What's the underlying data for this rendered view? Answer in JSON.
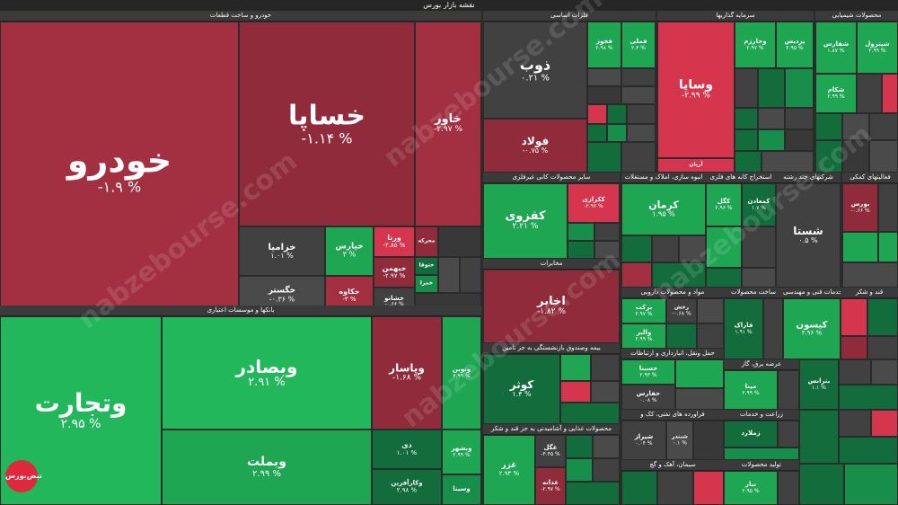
{
  "title": "نقشه بازار بورس",
  "watermark": "nabzebourse.com",
  "logo_text": "نبض‌بورس",
  "sections": {
    "auto": "خودرو و ساخت قطعات",
    "bank": "بانکها و موسسات اعتباری",
    "metal": "فلزات اساسی",
    "invest": "سرمایه گذاریها",
    "chem": "محصولات شیمیایی",
    "mineral": "سایر محصولات کانی غیرفلزی",
    "massbuild": "انبوه سازی، املاک و مستغلات",
    "coal": "استخراج کانه های فلزی",
    "multi": "شرکتهای چند رشته",
    "aux": "فعالیتهای کمکی",
    "telecom": "مخابرات",
    "insurance": "بیمه وصندوق بازنشستگی به جز تامین",
    "materials": "مواد و محصولات دارویی",
    "techserv": "خدمات فنی و مهندسی",
    "sugar": "قند و شکر",
    "building": "ساخت محصولات",
    "transport": "حمل ونقل، انبارداری و ارتباطات",
    "supply": "عرضه برق، گاز",
    "oil": "فراورده های نفتی، کک و",
    "food": "محصولات غذایی و آشامیدنی به جز قند و شکر",
    "agri": "زراعت و خدمات",
    "cement": "سیمان، آهک و گچ",
    "prod": "تولید محصولات"
  },
  "tiles": {
    "khodro": {
      "n": "خودرو",
      "v": "-۱.۹ %"
    },
    "khsapa": {
      "n": "خساپا",
      "v": "-۱.۱۴ %"
    },
    "khavar": {
      "n": "خاور",
      "v": "-۲.۹۷ %"
    },
    "khzamia": {
      "n": "خزامیا",
      "v": "۱.۰۱ %"
    },
    "khpars": {
      "n": "خپارس",
      "v": "۳ %"
    },
    "vorna": {
      "n": "ورنا",
      "v": "-۲.۸۵ %"
    },
    "mhrke": {
      "n": "محرکه",
      "v": ""
    },
    "khegostar": {
      "n": "خگستر",
      "v": "-۰.۳۶ %"
    },
    "khkaveh": {
      "n": "خکاوه",
      "v": "-۳ %"
    },
    "khbahman": {
      "n": "خبهمن",
      "v": "-۲.۹۷ %"
    },
    "kheshanu": {
      "n": "خشانو",
      "v": "-۰.۶۶ %"
    },
    "khtok": {
      "n": "ختوقا",
      "v": ""
    },
    "khamra": {
      "n": "خمرا",
      "v": ""
    },
    "vtejarat": {
      "n": "وتجارت",
      "v": "۲.۹۵ %"
    },
    "vbsader": {
      "n": "وبصادر",
      "v": "۲.۹۱ %"
    },
    "vbmelat": {
      "n": "وبملت",
      "v": "۲.۹۹ %"
    },
    "vpasar": {
      "n": "وپاسار",
      "v": "-۱.۶۸ %"
    },
    "vnovin": {
      "n": "ونوین",
      "v": "۲.۹۹ %"
    },
    "di": {
      "n": "دی",
      "v": "۱.۰۱ %"
    },
    "vbshahr": {
      "n": "وبشهر",
      "v": "۲.۹۹ %"
    },
    "vkarafarin": {
      "n": "وکارآفرین",
      "v": "۲.۹۸ %"
    },
    "vsina": {
      "n": "وسینا",
      "v": ""
    },
    "zob": {
      "n": "ذوب",
      "v": "۰.۲۱ %"
    },
    "foolad": {
      "n": "فولاد",
      "v": "-۰.۷۵ %"
    },
    "khoz": {
      "n": "فخوز",
      "v": "۲.۹۸ %"
    },
    "fameli": {
      "n": "فملی",
      "v": "۲.۳ %"
    },
    "vsapa": {
      "n": "وساپا",
      "v": "-۲.۹۹ %"
    },
    "vkharazm": {
      "n": "وخارزم",
      "v": "۲.۹۷ %"
    },
    "pardis": {
      "n": "پردیس",
      "v": "۲.۹۵ %"
    },
    "aryan": {
      "n": "آریان",
      "v": "-۲.۹۷ %"
    },
    "shfars": {
      "n": "شفارس",
      "v": "۱.۸۷ %"
    },
    "shepetrol": {
      "n": "شپترول",
      "v": "۲.۹۹ %"
    },
    "shkam": {
      "n": "شکام",
      "v": "۲.۹۹ %"
    },
    "kghazvin": {
      "n": "کقزوی",
      "v": "۲.۲۱ %"
    },
    "kkerazi": {
      "n": "ککرازی",
      "v": "-۲.۹۷ %"
    },
    "kerman": {
      "n": "کرمان",
      "v": "۱.۹۵ %"
    },
    "kegol": {
      "n": "کگل",
      "v": "۲.۹۶ %"
    },
    "kemadan": {
      "n": "کمعادن",
      "v": "۱.۷ %"
    },
    "shasta": {
      "n": "شستا",
      "v": "۰.۵ %"
    },
    "boors": {
      "n": "بورس",
      "v": "-۰.۶۶ %"
    },
    "akhaber": {
      "n": "اخابر",
      "v": "-۱.۸۲ %"
    },
    "kowsar": {
      "n": "کوثر",
      "v": "۱.۴ %"
    },
    "keysun": {
      "n": "کیسون",
      "v": "۲.۹۶ %"
    },
    "gol": {
      "n": "غگل",
      "v": "-۴.۴۵ %"
    },
    "ghazar": {
      "n": "غزر",
      "v": "۲.۹۳ %"
    },
    "ghadaneh": {
      "n": "غدانه",
      "v": "-۲.۹۷ %"
    },
    "shiraz": {
      "n": "شیراز",
      "v": "۰.۰۴ %"
    },
    "shbandar": {
      "n": "شبندر",
      "v": "۰.۱ %"
    },
    "rakhsh": {
      "n": "رخش",
      "v": "-۰.۶۸ %"
    },
    "barkat": {
      "n": "برکت",
      "v": "۲.۹۷ %"
    },
    "vasalam": {
      "n": "والبر",
      "v": "۲.۹۹ %"
    },
    "faraak": {
      "n": "فاراک",
      "v": "۱.۹۱ %"
    },
    "hasina": {
      "n": "حسینا",
      "v": "۲.۹۳ %"
    },
    "hafars": {
      "n": "حفارس",
      "v": "۰.۰۸ %"
    },
    "mapna": {
      "n": "مپنا",
      "v": "۲.۹۹ %"
    },
    "tapko": {
      "n": "بترانس",
      "v": "۱.۱ %"
    },
    "nabar": {
      "n": "نبار",
      "v": "۲.۹۵ %"
    },
    "zemlard": {
      "n": "زملارد",
      "v": ""
    }
  }
}
